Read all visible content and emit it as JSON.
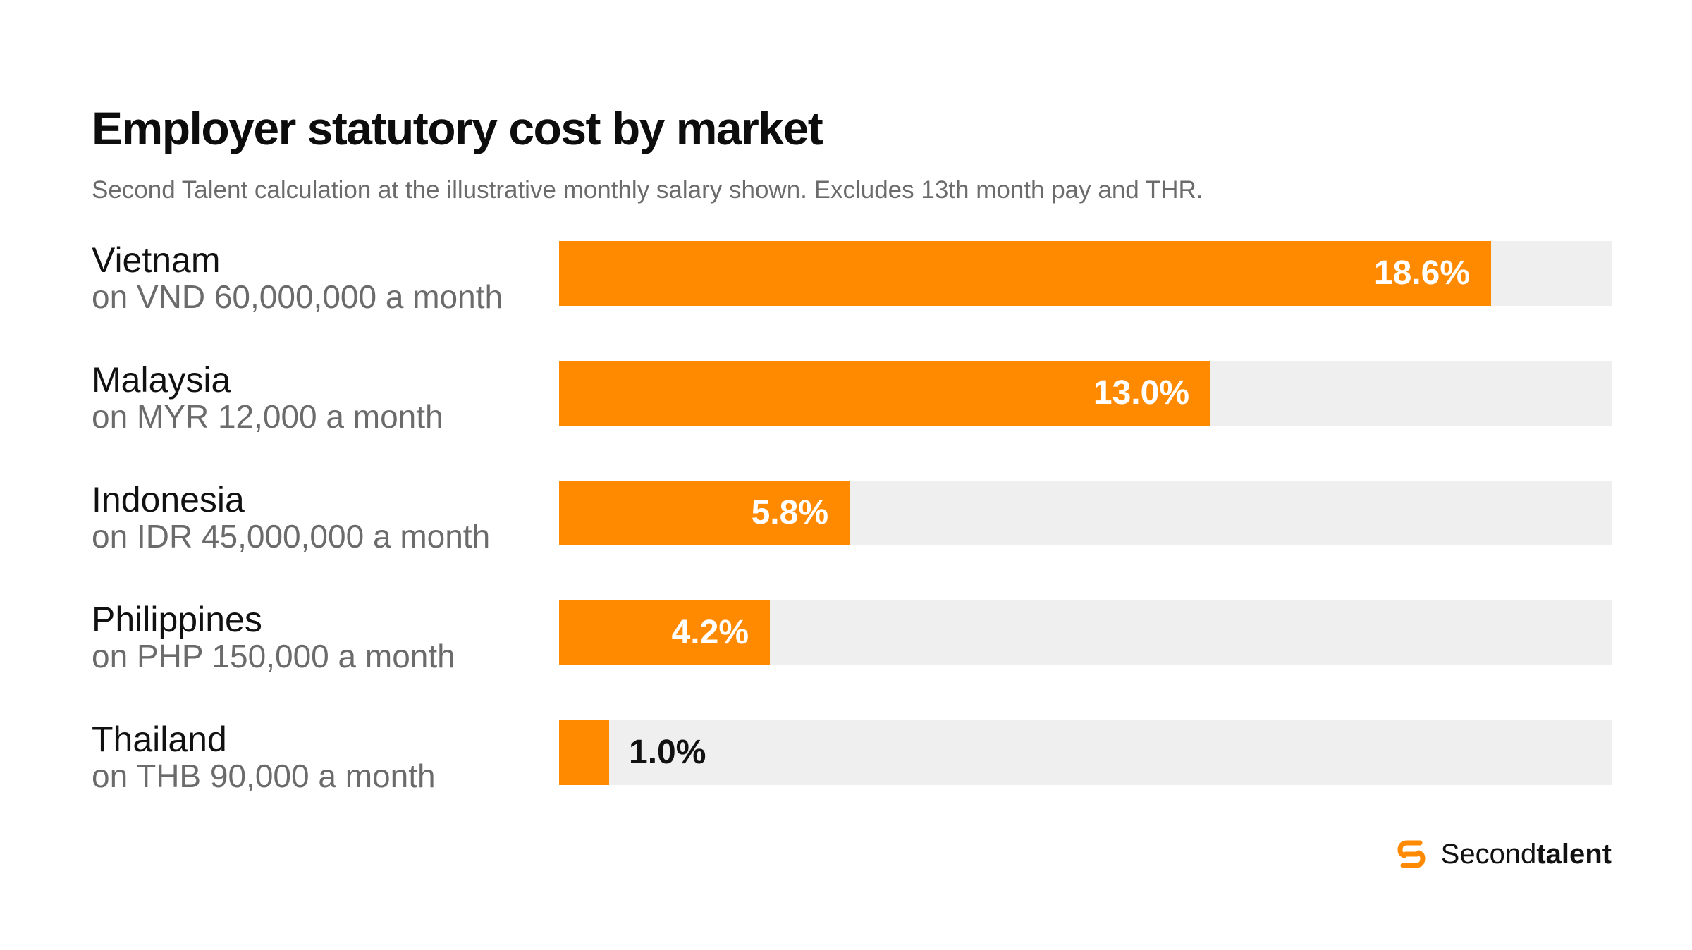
{
  "title": "Employer statutory cost by market",
  "subtitle": "Second Talent calculation at the illustrative monthly salary shown. Excludes 13th month pay and THR.",
  "colors": {
    "bar": "#ff8a00",
    "track": "#efefef",
    "title": "#0d0d0d",
    "muted": "#6b6b6b"
  },
  "chart_data": {
    "type": "bar",
    "orientation": "horizontal",
    "title": "Employer statutory cost by market",
    "subtitle": "Second Talent calculation at the illustrative monthly salary shown. Excludes 13th month pay and THR.",
    "xlim": [
      0,
      21
    ],
    "grid": false,
    "categories": [
      "Vietnam",
      "Malaysia",
      "Indonesia",
      "Philippines",
      "Thailand"
    ],
    "category_sublabels": [
      "on VND 60,000,000 a month",
      "on MYR 12,000 a month",
      "on IDR 45,000,000 a month",
      "on PHP 150,000 a month",
      "on THB 90,000 a month"
    ],
    "values": [
      18.6,
      13.0,
      5.8,
      4.2,
      1.0
    ],
    "value_labels": [
      "18.6%",
      "13.0%",
      "5.8%",
      "4.2%",
      "1.0%"
    ]
  },
  "brand": {
    "name_regular": "Second",
    "name_bold": "talent",
    "icon": "secondtalent-logo-icon"
  }
}
